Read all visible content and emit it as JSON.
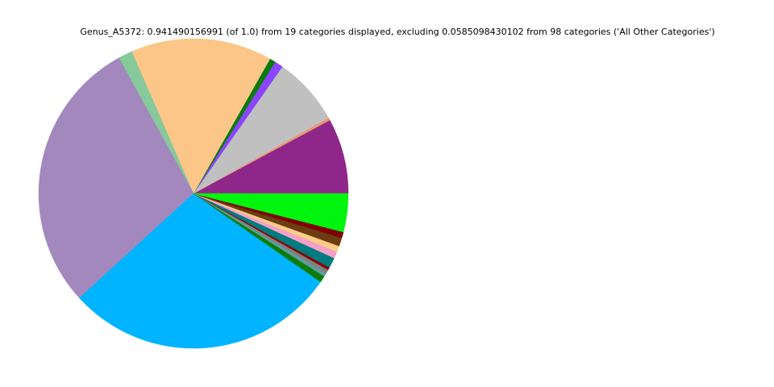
{
  "chart_data": {
    "type": "pie",
    "title": "Genus_A5372: 0.941490156991 (of 1.0) from 19 categories displayed, excluding 0.0585098430102 from 98 categories ('All Other Categories')",
    "start_angle_deg": 0,
    "direction": "counterclockwise",
    "legend": "none",
    "slices": [
      {
        "value": 0.074,
        "color": "#8f278a"
      },
      {
        "value": 0.0026,
        "color": "#e8956a"
      },
      {
        "value": 0.0672,
        "color": "#c0c0c0"
      },
      {
        "value": 0.0084,
        "color": "#8b44ff"
      },
      {
        "value": 0.0058,
        "color": "#0a7a0a"
      },
      {
        "value": 0.139,
        "color": "#fcc688"
      },
      {
        "value": 0.0139,
        "color": "#86c99b"
      },
      {
        "value": 0.271,
        "color": "#a388be"
      },
      {
        "value": 0.2686,
        "color": "#00b4ff"
      },
      {
        "value": 0.0065,
        "color": "#0a7d0a"
      },
      {
        "value": 0.0034,
        "color": "#5f9ea0"
      },
      {
        "value": 0.0039,
        "color": "#808080"
      },
      {
        "value": 0.0026,
        "color": "#8b0000"
      },
      {
        "value": 0.0102,
        "color": "#007b7f"
      },
      {
        "value": 0.0068,
        "color": "#f4a0c8"
      },
      {
        "value": 0.0058,
        "color": "#ffcc88"
      },
      {
        "value": 0.0084,
        "color": "#6b3d10"
      },
      {
        "value": 0.0058,
        "color": "#800000"
      },
      {
        "value": 0.0377,
        "color": "#00f50e"
      }
    ]
  }
}
